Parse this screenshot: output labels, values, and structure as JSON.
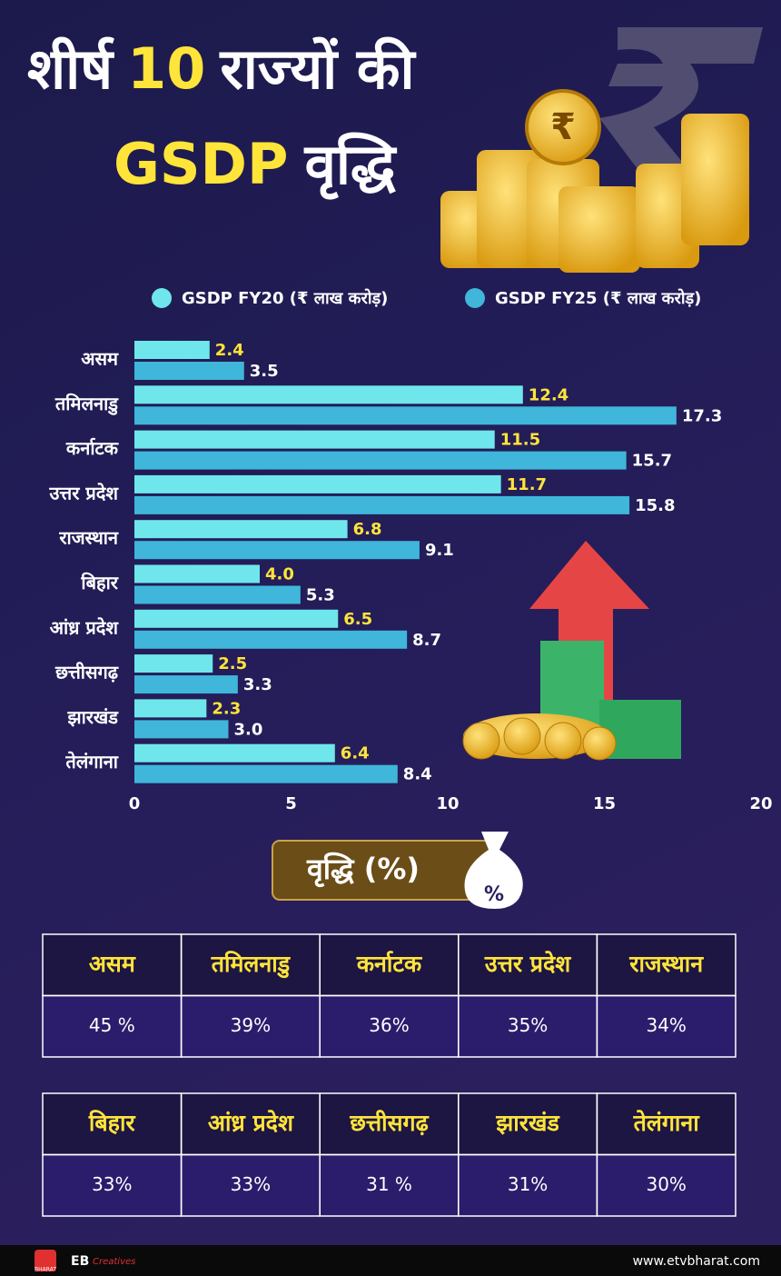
{
  "chart_data": {
    "type": "bar",
    "orientation": "horizontal",
    "title_parts": [
      "शीर्ष",
      "10",
      "राज्यों की",
      "GSDP",
      "वृद्धि"
    ],
    "categories": [
      "असम",
      "तमिलनाडु",
      "कर्नाटक",
      "उत्तर प्रदेश",
      "राजस्थान",
      "बिहार",
      "आंध्र प्रदेश",
      "छत्तीसगढ़",
      "झारखंड",
      "तेलंगाना"
    ],
    "series": [
      {
        "name": "GSDP FY20 (₹ लाख करोड़)",
        "color": "#6fe6ec",
        "label_color": "#ffe43a",
        "values": [
          2.4,
          12.4,
          11.5,
          11.7,
          6.8,
          4.0,
          6.5,
          2.5,
          2.3,
          6.4
        ],
        "value_labels": [
          "2.4",
          "12.4",
          "11.5",
          "11.7",
          "6.8",
          "4.0",
          "6.5",
          "2.5",
          "2.3",
          "6.4"
        ]
      },
      {
        "name": "GSDP FY25 (₹ लाख करोड़)",
        "color": "#3fb6da",
        "label_color": "#ffffff",
        "values": [
          3.5,
          17.3,
          15.7,
          15.8,
          9.1,
          5.3,
          8.7,
          3.3,
          3.0,
          8.4
        ],
        "value_labels": [
          "3.5",
          "17.3",
          "15.7",
          "15.8",
          "9.1",
          "5.3",
          "8.7",
          "3.3",
          "3.0",
          "8.4"
        ]
      }
    ],
    "xlim": [
      0,
      20
    ],
    "xticks": [
      0,
      5,
      10,
      15,
      20
    ],
    "grid": false
  },
  "growth": {
    "title": "वृद्धि (%)",
    "tables": [
      {
        "header": [
          "असम",
          "तमिलनाडु",
          "कर्नाटक",
          "उत्तर प्रदेश",
          "राजस्थान"
        ],
        "values": [
          "45 %",
          "39%",
          "36%",
          "35%",
          "34%"
        ]
      },
      {
        "header": [
          "बिहार",
          "आंध्र प्रदेश",
          "छत्तीसगढ़",
          "झारखंड",
          "तेलंगाना"
        ],
        "values": [
          "33%",
          "33%",
          "31 %",
          "31%",
          "30%"
        ]
      }
    ]
  },
  "footer": {
    "brand": "EB",
    "brand_script": "Creatives",
    "website": "www.etvbharat.com",
    "logo": "BHARAT"
  }
}
